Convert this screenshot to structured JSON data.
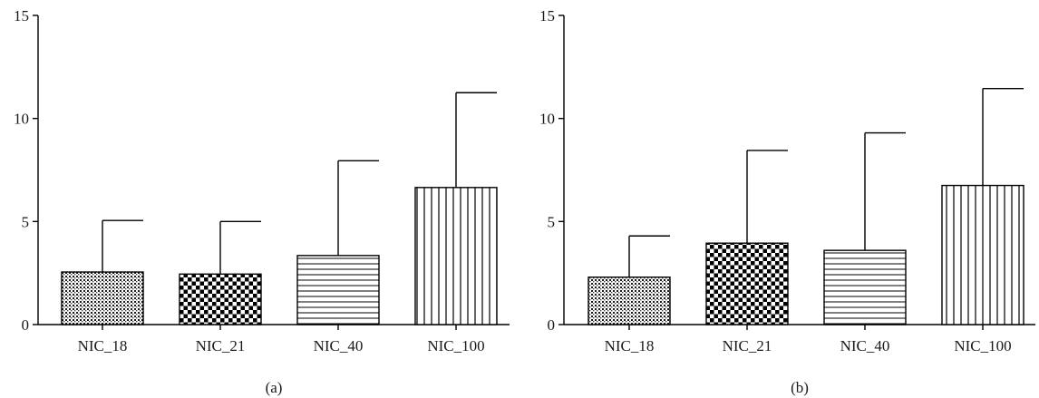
{
  "chart_data": [
    {
      "type": "bar",
      "panel_label": "(a)",
      "categories": [
        "NIC_18",
        "NIC_21",
        "NIC_40",
        "NIC_100"
      ],
      "values": [
        2.55,
        2.45,
        3.35,
        6.65
      ],
      "error_upper": [
        5.05,
        5.0,
        7.95,
        11.25
      ],
      "patterns": [
        "dots",
        "checker",
        "hlines",
        "vlines"
      ],
      "ylim": [
        0,
        15
      ],
      "yticks": [
        "0",
        "5",
        "10",
        "15"
      ],
      "grid": false
    },
    {
      "type": "bar",
      "panel_label": "(b)",
      "categories": [
        "NIC_18",
        "NIC_21",
        "NIC_40",
        "NIC_100"
      ],
      "values": [
        2.3,
        3.95,
        3.6,
        6.75
      ],
      "error_upper": [
        4.3,
        8.45,
        9.3,
        11.45
      ],
      "patterns": [
        "dots",
        "checker",
        "hlines",
        "vlines"
      ],
      "ylim": [
        0,
        15
      ],
      "yticks": [
        "0",
        "5",
        "10",
        "15"
      ],
      "grid": false
    }
  ]
}
